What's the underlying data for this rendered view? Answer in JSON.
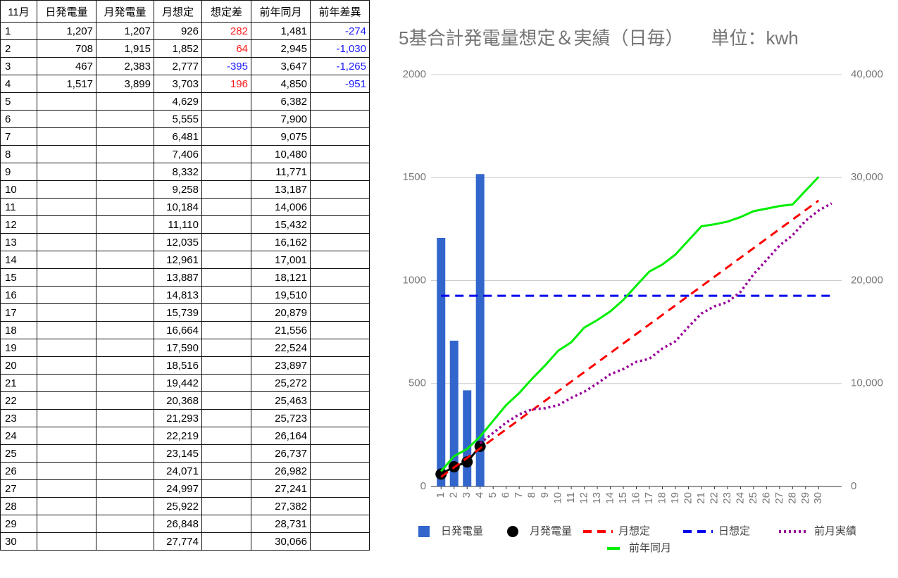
{
  "table": {
    "header": [
      "11月",
      "日発電量",
      "月発電量",
      "月想定",
      "想定差",
      "前年同月",
      "前年差異"
    ],
    "rows": [
      [
        "1",
        "1,207",
        "1,207",
        "926",
        "282",
        "1,481",
        "-274"
      ],
      [
        "2",
        "708",
        "1,915",
        "1,852",
        "64",
        "2,945",
        "-1,030"
      ],
      [
        "3",
        "467",
        "2,383",
        "2,777",
        "-395",
        "3,647",
        "-1,265"
      ],
      [
        "4",
        "1,517",
        "3,899",
        "3,703",
        "196",
        "4,850",
        "-951"
      ],
      [
        "5",
        null,
        null,
        "4,629",
        null,
        "6,382",
        null
      ],
      [
        "6",
        null,
        null,
        "5,555",
        null,
        "7,900",
        null
      ],
      [
        "7",
        null,
        null,
        "6,481",
        null,
        "9,075",
        null
      ],
      [
        "8",
        null,
        null,
        "7,406",
        null,
        "10,480",
        null
      ],
      [
        "9",
        null,
        null,
        "8,332",
        null,
        "11,771",
        null
      ],
      [
        "10",
        null,
        null,
        "9,258",
        null,
        "13,187",
        null
      ],
      [
        "11",
        null,
        null,
        "10,184",
        null,
        "14,006",
        null
      ],
      [
        "12",
        null,
        null,
        "11,110",
        null,
        "15,432",
        null
      ],
      [
        "13",
        null,
        null,
        "12,035",
        null,
        "16,162",
        null
      ],
      [
        "14",
        null,
        null,
        "12,961",
        null,
        "17,001",
        null
      ],
      [
        "15",
        null,
        null,
        "13,887",
        null,
        "18,121",
        null
      ],
      [
        "16",
        null,
        null,
        "14,813",
        null,
        "19,510",
        null
      ],
      [
        "17",
        null,
        null,
        "15,739",
        null,
        "20,879",
        null
      ],
      [
        "18",
        null,
        null,
        "16,664",
        null,
        "21,556",
        null
      ],
      [
        "19",
        null,
        null,
        "17,590",
        null,
        "22,524",
        null
      ],
      [
        "20",
        null,
        null,
        "18,516",
        null,
        "23,897",
        null
      ],
      [
        "21",
        null,
        null,
        "19,442",
        null,
        "25,272",
        null
      ],
      [
        "22",
        null,
        null,
        "20,368",
        null,
        "25,463",
        null
      ],
      [
        "23",
        null,
        null,
        "21,293",
        null,
        "25,723",
        null
      ],
      [
        "24",
        null,
        null,
        "22,219",
        null,
        "26,164",
        null
      ],
      [
        "25",
        null,
        null,
        "23,145",
        null,
        "26,737",
        null
      ],
      [
        "26",
        null,
        null,
        "24,071",
        null,
        "26,982",
        null
      ],
      [
        "27",
        null,
        null,
        "24,997",
        null,
        "27,241",
        null
      ],
      [
        "28",
        null,
        null,
        "25,922",
        null,
        "27,382",
        null
      ],
      [
        "29",
        null,
        null,
        "26,848",
        null,
        "28,731",
        null
      ],
      [
        "30",
        null,
        null,
        "27,774",
        null,
        "30,066",
        null
      ]
    ]
  },
  "chart_data": {
    "type": "combo",
    "title": "5基合計発電量想定＆実績（日毎）　　単位：kwh",
    "categories": [
      "1",
      "2",
      "3",
      "4",
      "5",
      "6",
      "7",
      "8",
      "9",
      "10",
      "11",
      "12",
      "13",
      "14",
      "15",
      "16",
      "17",
      "18",
      "19",
      "20",
      "21",
      "22",
      "23",
      "24",
      "25",
      "26",
      "27",
      "28",
      "29",
      "30",
      null
    ],
    "ylim": [
      0,
      2000
    ],
    "yticks": [
      0,
      500,
      1000,
      1500,
      2000
    ],
    "y2lim": [
      0,
      40000
    ],
    "y2ticks": [
      0,
      {
        "value": 10000,
        "label": "10,000"
      },
      {
        "value": 20000,
        "label": "20,000"
      },
      {
        "value": 30000,
        "label": "30,000"
      },
      {
        "value": 40000,
        "label": "40,000"
      }
    ],
    "grid": true,
    "legend": "bottom",
    "series": [
      {
        "name": "日発電量",
        "type": "bar",
        "color": "#3366cc",
        "values": [
          1207,
          708,
          467,
          1517,
          null,
          null,
          null,
          null,
          null,
          null,
          null,
          null,
          null,
          null,
          null,
          null,
          null,
          null,
          null,
          null,
          null,
          null,
          null,
          null,
          null,
          null,
          null,
          null,
          null,
          null,
          null
        ]
      },
      {
        "name": "月発電量",
        "type": "marker-line",
        "color": "#000000",
        "axis": "y2",
        "values": [
          1207,
          1915,
          2383,
          3899,
          null,
          null,
          null,
          null,
          null,
          null,
          null,
          null,
          null,
          null,
          null,
          null,
          null,
          null,
          null,
          null,
          null,
          null,
          null,
          null,
          null,
          null,
          null,
          null,
          null,
          null,
          null
        ]
      },
      {
        "name": "月想定",
        "type": "dashed",
        "color": "#ff0000",
        "axis": "y2",
        "values": [
          926,
          1852,
          2777,
          3703,
          4629,
          5555,
          6481,
          7406,
          8332,
          9258,
          10184,
          11110,
          12035,
          12961,
          13887,
          14813,
          15739,
          16664,
          17590,
          18516,
          19442,
          20368,
          21293,
          22219,
          23145,
          24071,
          24997,
          25922,
          26848,
          27774,
          null
        ]
      },
      {
        "name": "日想定",
        "type": "dashed",
        "color": "#0000ee",
        "values": [
          926,
          926,
          926,
          926,
          926,
          926,
          926,
          926,
          926,
          926,
          926,
          926,
          926,
          926,
          926,
          926,
          926,
          926,
          926,
          926,
          926,
          926,
          926,
          926,
          926,
          926,
          926,
          926,
          926,
          926,
          926
        ]
      },
      {
        "name": "前月実績",
        "type": "dotted",
        "color": "#990099",
        "axis": "y2",
        "values": [
          null,
          null,
          null,
          4200,
          5200,
          6200,
          7000,
          7500,
          7600,
          7900,
          8600,
          9200,
          10000,
          10900,
          11400,
          12100,
          12400,
          13400,
          14100,
          15500,
          16800,
          17500,
          17900,
          18900,
          20600,
          22000,
          23400,
          24400,
          25800,
          26800,
          27500
        ]
      },
      {
        "name": "前年同月",
        "type": "line",
        "color": "#00ee00",
        "axis": "y2",
        "values": [
          1481,
          2945,
          3647,
          4850,
          6382,
          7900,
          9075,
          10480,
          11771,
          13187,
          14006,
          15432,
          16162,
          17001,
          18121,
          19510,
          20879,
          21556,
          22524,
          23897,
          25272,
          25463,
          25723,
          26164,
          26737,
          26982,
          27241,
          27382,
          28731,
          30066,
          null
        ]
      }
    ]
  }
}
